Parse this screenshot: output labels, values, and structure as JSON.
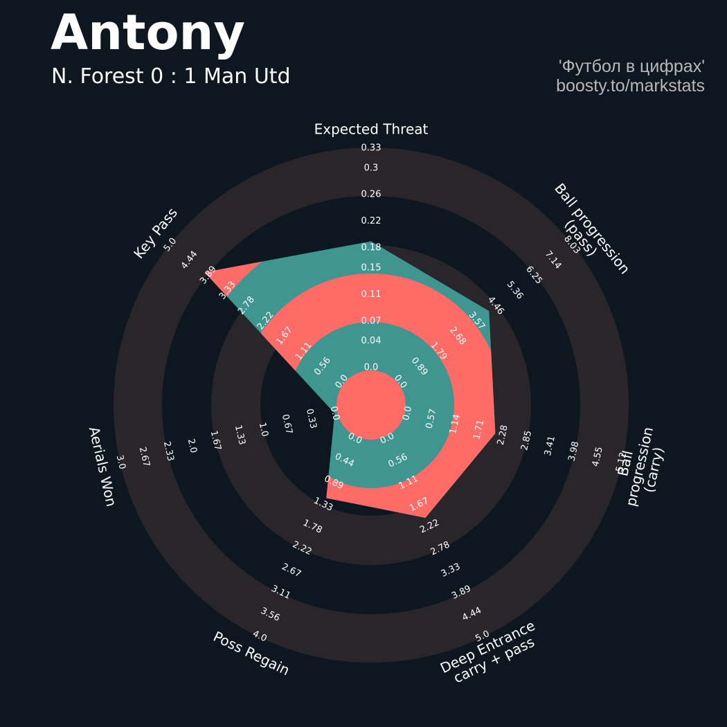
{
  "chart_data": {
    "type": "radar",
    "title": "Antony",
    "subtitle": "N. Forest 0 : 1 Man Utd",
    "credits": [
      "'Футбол в цифрах'",
      "boosty.to/markstats"
    ],
    "color": "#3f958f",
    "alt_color": "#ff6b67",
    "ring_color": "#28252b",
    "axes": [
      {
        "label": "Expected Threat",
        "lim": [
          0,
          0.33
        ],
        "ticks": [
          {
            "value": 0,
            "label": "0.0"
          },
          0.04,
          0.07,
          0.11,
          0.15,
          0.18,
          0.22,
          0.26,
          0.3,
          0.33
        ]
      },
      {
        "label": "Ball progression (pass)",
        "lim": [
          0,
          8.03
        ],
        "ticks": [
          {
            "value": 0,
            "label": "0.0"
          },
          0.89,
          1.79,
          2.68,
          3.57,
          4.46,
          5.36,
          6.25,
          7.14,
          8.03
        ]
      },
      {
        "label": "Ball progression (carry)",
        "lim": [
          0,
          5.12
        ],
        "ticks": [
          {
            "value": 0,
            "label": "0.0"
          },
          0.57,
          1.14,
          1.71,
          2.28,
          2.85,
          3.41,
          3.98,
          4.55,
          5.12
        ]
      },
      {
        "label": "Deep Entrance\ncarry + pass",
        "lim": [
          0,
          5
        ],
        "ticks": [
          {
            "value": 0,
            "label": "0.0"
          },
          0.56,
          1.11,
          1.67,
          2.22,
          2.78,
          3.33,
          3.89,
          4.44,
          {
            "value": 5,
            "label": "5.0"
          }
        ]
      },
      {
        "label": "Poss Regain",
        "lim": [
          0,
          4
        ],
        "ticks": [
          {
            "value": 0,
            "label": "0.0"
          },
          0.44,
          0.89,
          1.33,
          1.78,
          2.22,
          2.67,
          3.11,
          3.56,
          {
            "value": 4,
            "label": "4.0"
          }
        ]
      },
      {
        "label": "Aerials Won",
        "lim": [
          0,
          3
        ],
        "ticks": [
          {
            "value": 0,
            "label": "0.0"
          },
          0.33,
          0.67,
          {
            "value": 1,
            "label": "1.0"
          },
          1.33,
          1.67,
          {
            "value": 2,
            "label": "2.0"
          },
          2.33,
          2.67,
          {
            "value": 3,
            "label": "3.0"
          }
        ]
      },
      {
        "label": "Key Pass",
        "lim": [
          0,
          5
        ],
        "ticks": [
          {
            "value": 0,
            "label": "0.0"
          },
          0.56,
          1.11,
          1.67,
          2.22,
          2.78,
          3.33,
          3.89,
          4.44,
          {
            "value": 5,
            "label": "5.0"
          }
        ]
      }
    ],
    "values": [
      0.19,
      4.15,
      2.1,
      2,
      1.2,
      0,
      4
    ]
  }
}
